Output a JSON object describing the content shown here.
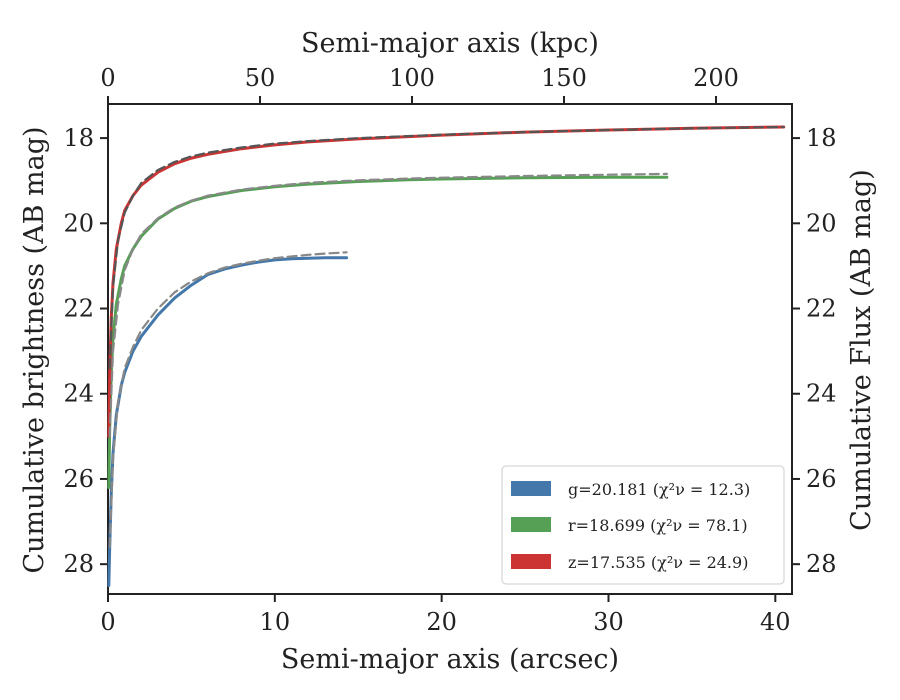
{
  "chart_data": {
    "type": "line",
    "xlabel": "Semi-major axis (arcsec)",
    "ylabel": "Cumulative brightness (AB mag)",
    "top_xlabel": "Semi-major axis (kpc)",
    "right_ylabel": "Cumulative Flux (AB mag)",
    "xlim": [
      0,
      41
    ],
    "ylim": [
      28.7,
      17.2
    ],
    "kpc_lim": [
      0,
      225
    ],
    "x_ticks": [
      0,
      10,
      20,
      30,
      40
    ],
    "y_ticks": [
      18,
      20,
      22,
      24,
      26,
      28
    ],
    "kpc_ticks": [
      0,
      50,
      100,
      150,
      200
    ],
    "y_inverted": true,
    "grid": false,
    "legend_position": "bottom-right",
    "legend": [
      {
        "label": "g=20.181 (χ²ν = 12.3)",
        "color": "#4477aa"
      },
      {
        "label": "r=18.699 (χ²ν = 78.1)",
        "color": "#55a055"
      },
      {
        "label": "z=17.535 (χ²ν = 24.9)",
        "color": "#cc3333"
      }
    ],
    "series": [
      {
        "band": "g",
        "color": "#4477aa",
        "x": [
          0.05,
          0.1,
          0.2,
          0.3,
          0.5,
          0.8,
          1.0,
          1.5,
          2.0,
          3.0,
          4.0,
          5.0,
          6.0,
          7.0,
          8.0,
          9.0,
          10.0,
          11.0,
          12.0,
          13.0,
          14.3
        ],
        "y": [
          28.5,
          27.6,
          26.3,
          25.4,
          24.5,
          23.8,
          23.5,
          23.0,
          22.65,
          22.15,
          21.75,
          21.45,
          21.2,
          21.07,
          20.98,
          20.91,
          20.86,
          20.83,
          20.82,
          20.81,
          20.81
        ]
      },
      {
        "band": "g-model",
        "color": "#888888",
        "dashed": true,
        "x": [
          0.1,
          0.3,
          0.6,
          1.0,
          1.5,
          2.0,
          3.0,
          4.0,
          5.0,
          6.0,
          7.0,
          8.0,
          9.0,
          10.0,
          11.0,
          12.0,
          13.0,
          14.3
        ],
        "y": [
          27.6,
          25.5,
          24.2,
          23.4,
          22.9,
          22.5,
          22.0,
          21.62,
          21.36,
          21.17,
          21.04,
          20.95,
          20.88,
          20.82,
          20.78,
          20.74,
          20.71,
          20.68
        ]
      },
      {
        "band": "r",
        "color": "#55a055",
        "x": [
          0.05,
          0.1,
          0.2,
          0.3,
          0.5,
          0.8,
          1.0,
          1.5,
          2.0,
          3.0,
          4.0,
          5.0,
          6.0,
          8.0,
          10.0,
          12.0,
          15.0,
          18.0,
          20.0,
          25.0,
          30.0,
          33.5
        ],
        "y": [
          26.2,
          24.8,
          23.5,
          22.7,
          21.9,
          21.3,
          21.0,
          20.6,
          20.3,
          19.9,
          19.65,
          19.48,
          19.37,
          19.23,
          19.14,
          19.08,
          19.02,
          18.98,
          18.96,
          18.93,
          18.92,
          18.92
        ]
      },
      {
        "band": "r-model",
        "color": "#888888",
        "dashed": true,
        "x": [
          0.1,
          0.3,
          0.6,
          1.0,
          1.5,
          2.0,
          3.0,
          4.0,
          5.0,
          6.0,
          8.0,
          10.0,
          12.0,
          15.0,
          18.0,
          20.0,
          25.0,
          30.0,
          33.5
        ],
        "y": [
          25.0,
          23.0,
          21.9,
          21.1,
          20.6,
          20.25,
          19.88,
          19.63,
          19.47,
          19.35,
          19.21,
          19.12,
          19.05,
          18.99,
          18.95,
          18.93,
          18.89,
          18.86,
          18.84
        ]
      },
      {
        "band": "z",
        "color": "#cc3333",
        "x": [
          0.05,
          0.1,
          0.2,
          0.3,
          0.5,
          0.8,
          1.0,
          1.5,
          2.0,
          3.0,
          4.0,
          5.0,
          6.0,
          8.0,
          10.0,
          12.0,
          15.0,
          20.0,
          25.0,
          30.0,
          35.0,
          40.5
        ],
        "y": [
          25.0,
          23.5,
          22.2,
          21.4,
          20.6,
          20.0,
          19.7,
          19.35,
          19.1,
          18.8,
          18.6,
          18.47,
          18.38,
          18.25,
          18.16,
          18.09,
          18.02,
          17.93,
          17.86,
          17.81,
          17.77,
          17.74
        ]
      },
      {
        "band": "z-model",
        "color": "#555555",
        "dashed": true,
        "x": [
          0.1,
          0.3,
          0.6,
          1.0,
          1.5,
          2.0,
          3.0,
          4.0,
          5.0,
          6.0,
          8.0,
          10.0,
          12.0,
          15.0,
          20.0,
          25.0,
          30.0,
          35.0,
          40.5
        ],
        "y": [
          23.4,
          21.5,
          20.4,
          19.75,
          19.35,
          19.05,
          18.75,
          18.56,
          18.43,
          18.34,
          18.22,
          18.13,
          18.07,
          18.0,
          17.92,
          17.86,
          17.81,
          17.77,
          17.74
        ]
      }
    ]
  }
}
